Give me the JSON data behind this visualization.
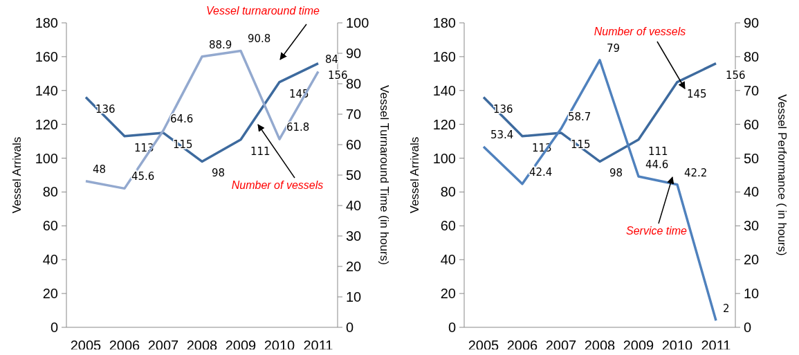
{
  "chart_data": [
    {
      "type": "line",
      "categories": [
        "2005",
        "2006",
        "2007",
        "2008",
        "2009",
        "2010",
        "2011"
      ],
      "ylabel": "Vessel Arrivals",
      "y2label": "Vessel Turnaround Time (in hours)",
      "ylim": [
        0,
        180
      ],
      "yticks": [
        0,
        20,
        40,
        60,
        80,
        100,
        120,
        140,
        160,
        180
      ],
      "y2lim": [
        0,
        100
      ],
      "y2ticks": [
        0,
        10,
        20,
        30,
        40,
        50,
        60,
        70,
        80,
        90,
        100
      ],
      "data_labels": true,
      "grid": false,
      "marker": "none",
      "series": [
        {
          "color": "#3d6a9e",
          "values": [
            136,
            113,
            115,
            98,
            111,
            145,
            156
          ]
        },
        {
          "color": "#93a9cf",
          "axis": "y2",
          "values": [
            48,
            45.6,
            64.6,
            88.9,
            90.8,
            61.8,
            84
          ]
        }
      ],
      "annotations": [
        "Vessel turnaround time",
        "Number of vessels"
      ]
    },
    {
      "type": "line",
      "categories": [
        "2005",
        "2006",
        "2007",
        "2008",
        "2009",
        "2010",
        "2011"
      ],
      "ylabel": "Vessel Arrivals",
      "y2label": "Vessel Performance ( in hours)",
      "ylim": [
        0,
        180
      ],
      "yticks": [
        0,
        20,
        40,
        60,
        80,
        100,
        120,
        140,
        160,
        180
      ],
      "y2lim": [
        0,
        90
      ],
      "y2ticks": [
        0,
        10,
        20,
        30,
        40,
        50,
        60,
        70,
        80,
        90
      ],
      "data_labels": true,
      "grid": false,
      "marker": "none",
      "series": [
        {
          "color": "#3d6a9e",
          "values": [
            136,
            113,
            115,
            98,
            111,
            145,
            156
          ]
        },
        {
          "color": "#4f81bd",
          "axis": "y2",
          "values": [
            53.4,
            42.4,
            58.7,
            79,
            44.6,
            42.2,
            2
          ]
        }
      ],
      "annotations": [
        "Number of vessels",
        "Service time"
      ]
    }
  ]
}
